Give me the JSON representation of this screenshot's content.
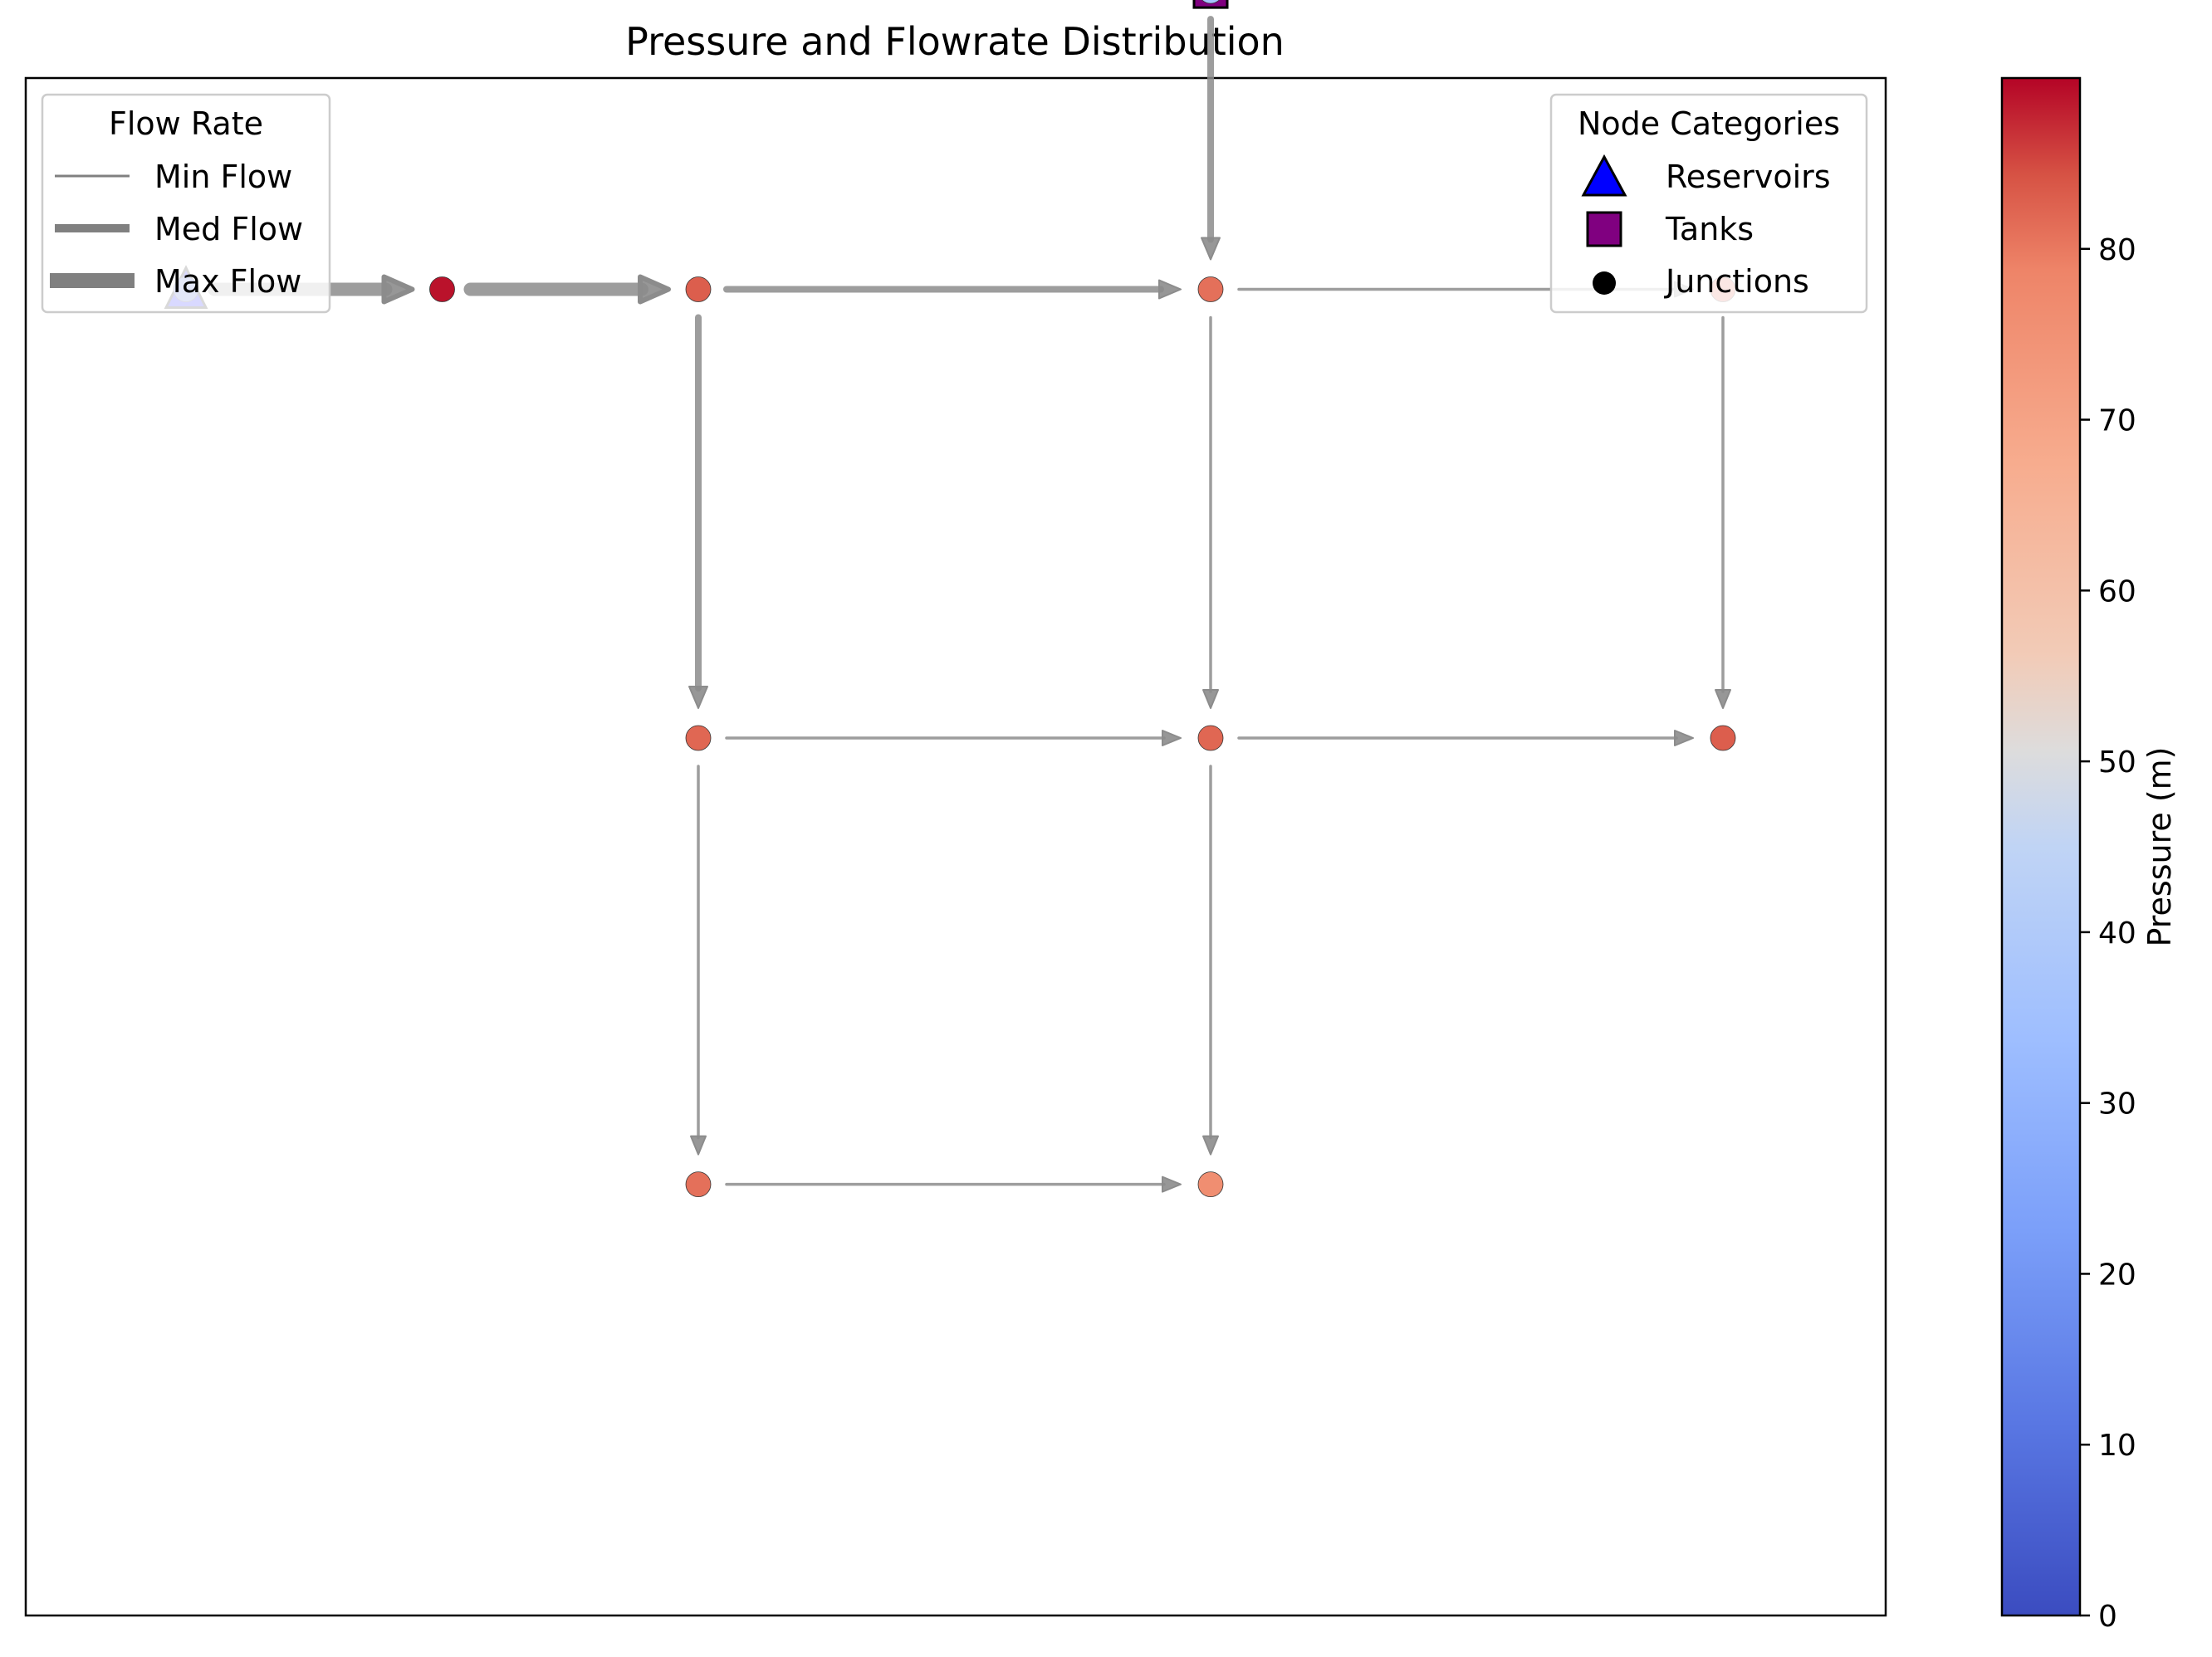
{
  "chart_data": {
    "type": "network",
    "title": "Pressure and Flowrate Distribution",
    "colorbar": {
      "label": "Pressure (m)",
      "min": 0,
      "max": 90,
      "ticks": [
        0,
        10,
        20,
        30,
        40,
        50,
        60,
        70,
        80
      ],
      "colormap": "coolwarm"
    },
    "flow_legend": {
      "title": "Flow Rate",
      "items": [
        {
          "label": "Min Flow",
          "width": "min"
        },
        {
          "label": "Med Flow",
          "width": "med"
        },
        {
          "label": "Max Flow",
          "width": "max"
        }
      ]
    },
    "node_legend": {
      "title": "Node Categories",
      "items": [
        {
          "label": "Reservoirs",
          "symbol": "triangle",
          "color": "#0000ff"
        },
        {
          "label": "Tanks",
          "symbol": "square",
          "color": "#800080"
        },
        {
          "label": "Junctions",
          "symbol": "circle",
          "color": "#000000"
        }
      ]
    },
    "nodes": [
      {
        "id": "R1",
        "type": "reservoir",
        "x": 0,
        "y": 5,
        "pressure": 5
      },
      {
        "id": "J1",
        "type": "junction",
        "x": 1,
        "y": 5,
        "pressure": 89
      },
      {
        "id": "J2",
        "type": "junction",
        "x": 2,
        "y": 5,
        "pressure": 83
      },
      {
        "id": "J3",
        "type": "junction",
        "x": 4,
        "y": 5,
        "pressure": 81
      },
      {
        "id": "J4",
        "type": "junction",
        "x": 6,
        "y": 5,
        "pressure": 83
      },
      {
        "id": "T1",
        "type": "tank",
        "x": 4,
        "y": 6.25,
        "pressure": 36
      },
      {
        "id": "J5",
        "type": "junction",
        "x": 2,
        "y": 3.12,
        "pressure": 82
      },
      {
        "id": "J6",
        "type": "junction",
        "x": 4,
        "y": 3.12,
        "pressure": 82
      },
      {
        "id": "J7",
        "type": "junction",
        "x": 6,
        "y": 3.12,
        "pressure": 83
      },
      {
        "id": "J8",
        "type": "junction",
        "x": 2,
        "y": 1.25,
        "pressure": 81
      },
      {
        "id": "J9",
        "type": "junction",
        "x": 4,
        "y": 1.25,
        "pressure": 76
      }
    ],
    "links": [
      {
        "from": "R1",
        "to": "J1",
        "flow": "max"
      },
      {
        "from": "J1",
        "to": "J2",
        "flow": "max"
      },
      {
        "from": "J2",
        "to": "J3",
        "flow": "med"
      },
      {
        "from": "T1",
        "to": "J3",
        "flow": "med"
      },
      {
        "from": "J3",
        "to": "J4",
        "flow": "min"
      },
      {
        "from": "J2",
        "to": "J5",
        "flow": "med"
      },
      {
        "from": "J3",
        "to": "J6",
        "flow": "min"
      },
      {
        "from": "J4",
        "to": "J7",
        "flow": "min"
      },
      {
        "from": "J5",
        "to": "J6",
        "flow": "min"
      },
      {
        "from": "J6",
        "to": "J7",
        "flow": "min"
      },
      {
        "from": "J5",
        "to": "J8",
        "flow": "min"
      },
      {
        "from": "J6",
        "to": "J9",
        "flow": "min"
      },
      {
        "from": "J8",
        "to": "J9",
        "flow": "min"
      }
    ]
  }
}
